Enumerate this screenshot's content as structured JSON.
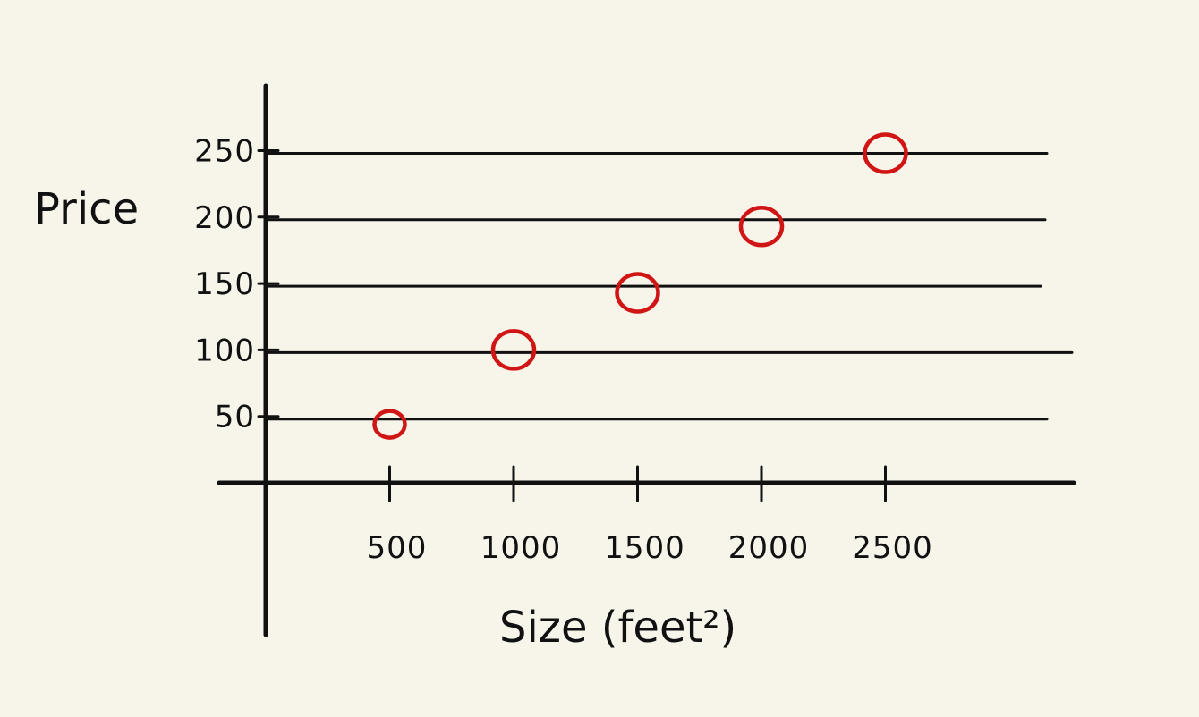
{
  "chart_data": {
    "type": "scatter",
    "title": "",
    "xlabel": "Size (feet²)",
    "ylabel": "Price",
    "x": [
      500,
      1000,
      1500,
      2000,
      2500
    ],
    "y": [
      44,
      100,
      143,
      193,
      248
    ],
    "x_ticks": [
      "500",
      "1000",
      "1500",
      "2000",
      "2500"
    ],
    "y_ticks": [
      "50",
      "100",
      "150",
      "200",
      "250"
    ],
    "xlim": [
      0,
      3000
    ],
    "ylim": [
      0,
      300
    ],
    "grid": true,
    "legend": "none",
    "marker": "hollow-circle",
    "colors": {
      "marker": "#d01515",
      "ink": "#111111",
      "background": "#f7f4ea"
    }
  }
}
